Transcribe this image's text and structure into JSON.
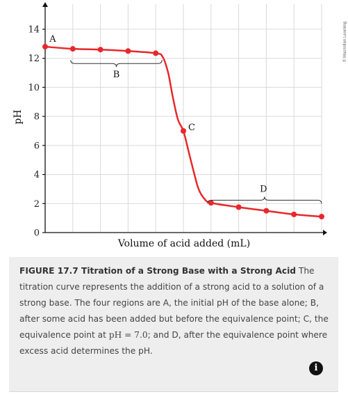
{
  "chart_data": {
    "type": "line",
    "ylabel": "pH",
    "xlabel": "Volume of acid added (mL)",
    "ylim": [
      0,
      14
    ],
    "yticks": [
      0,
      2,
      4,
      6,
      8,
      10,
      12,
      14
    ],
    "xlim": [
      0,
      10
    ],
    "grid": true,
    "points": [
      {
        "x": 0,
        "y": 12.8
      },
      {
        "x": 1,
        "y": 12.65
      },
      {
        "x": 2,
        "y": 12.6
      },
      {
        "x": 3,
        "y": 12.5
      },
      {
        "x": 4,
        "y": 12.35
      },
      {
        "x": 5,
        "y": 7.0
      },
      {
        "x": 6,
        "y": 2.05
      },
      {
        "x": 7,
        "y": 1.75
      },
      {
        "x": 8,
        "y": 1.5
      },
      {
        "x": 9,
        "y": 1.25
      },
      {
        "x": 10,
        "y": 1.1
      }
    ],
    "curve": [
      [
        0,
        12.8
      ],
      [
        1,
        12.65
      ],
      [
        2,
        12.6
      ],
      [
        3,
        12.5
      ],
      [
        4,
        12.35
      ],
      [
        4.25,
        12.1
      ],
      [
        4.45,
        11.0
      ],
      [
        4.6,
        9.5
      ],
      [
        4.8,
        7.8
      ],
      [
        5,
        7.0
      ],
      [
        5.2,
        5.5
      ],
      [
        5.4,
        4.0
      ],
      [
        5.55,
        3.0
      ],
      [
        5.75,
        2.35
      ],
      [
        6,
        2.05
      ],
      [
        7,
        1.75
      ],
      [
        8,
        1.5
      ],
      [
        9,
        1.25
      ],
      [
        10,
        1.1
      ]
    ],
    "regions": [
      {
        "label": "A",
        "x": 0,
        "y": 12.8
      },
      {
        "label": "B",
        "x_range": [
          1,
          4
        ]
      },
      {
        "label": "C",
        "x": 5,
        "y": 7.0
      },
      {
        "label": "D",
        "x_range": [
          6,
          10
        ]
      }
    ],
    "line_color": "#e8282b",
    "point_color": "#e8282b"
  },
  "credit": "© Macmillan Learning",
  "caption": {
    "title": "FIGURE 17.7 Titration of a Strong Base with a Strong Acid",
    "text_1": " The titration curve represents the addition of a strong acid to a solution of a strong base. The four regions are A, the initial pH of the base alone; B, after some acid has been added but before the equivalence point; C, the equivalence point at ",
    "math": "pH = 7.0",
    "text_2": "; and D, after the equivalence point where excess acid determines the pH."
  },
  "info_button": "i"
}
